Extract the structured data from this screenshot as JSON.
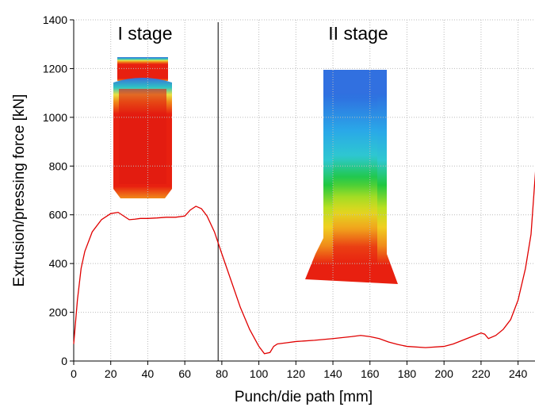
{
  "chart_data": {
    "type": "line",
    "xlabel": "Punch/die path [mm]",
    "ylabel": "Extrusion/pressing force [kN]",
    "annotations": [
      "I stage",
      "II stage"
    ],
    "vline": 78,
    "xlim": [
      0,
      250
    ],
    "ylim": [
      0,
      1400
    ],
    "xticks": [
      0,
      20,
      40,
      60,
      80,
      100,
      120,
      140,
      160,
      180,
      200,
      220,
      240
    ],
    "yticks": [
      0,
      200,
      400,
      600,
      800,
      1000,
      1200,
      1400
    ],
    "grid": true,
    "x": [
      0,
      2,
      4,
      6,
      10,
      15,
      20,
      24,
      27,
      30,
      33,
      36,
      40,
      45,
      50,
      55,
      60,
      63,
      66,
      69,
      72,
      76,
      80,
      85,
      90,
      95,
      100,
      103,
      106,
      108,
      110,
      115,
      120,
      130,
      140,
      150,
      155,
      160,
      165,
      170,
      175,
      180,
      190,
      200,
      205,
      210,
      215,
      220,
      222,
      224,
      228,
      232,
      236,
      240,
      244,
      247,
      250
    ],
    "series": [
      {
        "color": "#e00000",
        "values": [
          70,
          250,
          380,
          450,
          530,
          580,
          605,
          610,
          595,
          580,
          582,
          585,
          585,
          587,
          590,
          590,
          595,
          620,
          635,
          625,
          595,
          530,
          440,
          330,
          220,
          130,
          60,
          30,
          35,
          60,
          70,
          75,
          80,
          85,
          92,
          100,
          105,
          100,
          92,
          78,
          68,
          60,
          55,
          60,
          70,
          85,
          100,
          115,
          110,
          92,
          105,
          130,
          170,
          250,
          380,
          520,
          840
        ]
      }
    ]
  }
}
